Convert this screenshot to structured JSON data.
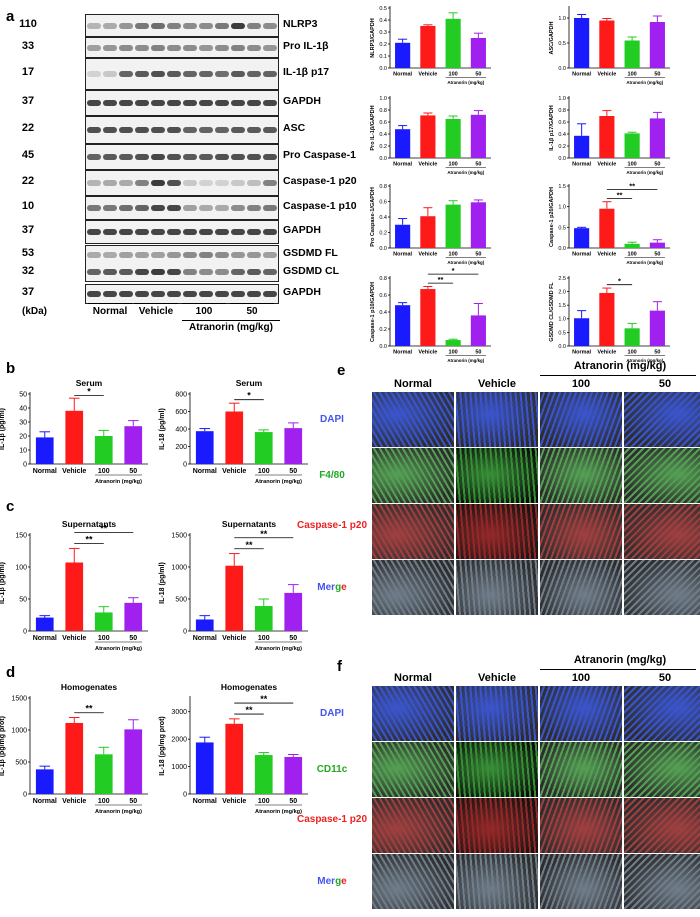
{
  "panels": {
    "a": "a",
    "b": "b",
    "c": "c",
    "d": "d",
    "e": "e",
    "f": "f"
  },
  "blot": {
    "rows": [
      {
        "mw": "110",
        "protein": "NLRP3",
        "dark": [
          0.3,
          0.35,
          0.45,
          0.6,
          0.65,
          0.55,
          0.5,
          0.5,
          0.6,
          0.9,
          0.55,
          0.5
        ]
      },
      {
        "mw": "33",
        "protein": "Pro IL-1β",
        "dark": [
          0.4,
          0.45,
          0.5,
          0.5,
          0.55,
          0.5,
          0.5,
          0.45,
          0.5,
          0.55,
          0.5,
          0.45
        ]
      },
      {
        "mw": "17",
        "protein": "IL-1β p17",
        "dark": [
          0.15,
          0.2,
          0.7,
          0.75,
          0.8,
          0.75,
          0.7,
          0.7,
          0.65,
          0.75,
          0.7,
          0.7
        ]
      },
      {
        "mw": "37",
        "protein": "GAPDH",
        "dark": [
          0.85,
          0.85,
          0.85,
          0.85,
          0.85,
          0.85,
          0.85,
          0.85,
          0.85,
          0.85,
          0.85,
          0.85
        ]
      },
      {
        "mw": "22",
        "protein": "ASC",
        "dark": [
          0.8,
          0.8,
          0.8,
          0.8,
          0.8,
          0.8,
          0.7,
          0.7,
          0.7,
          0.75,
          0.75,
          0.75
        ]
      },
      {
        "mw": "45",
        "protein": "Pro Caspase-1",
        "dark": [
          0.7,
          0.75,
          0.75,
          0.8,
          0.85,
          0.8,
          0.75,
          0.75,
          0.8,
          0.8,
          0.8,
          0.8
        ]
      },
      {
        "mw": "22",
        "protein": "Caspase-1 p20",
        "dark": [
          0.3,
          0.35,
          0.35,
          0.55,
          0.9,
          0.8,
          0.2,
          0.15,
          0.15,
          0.2,
          0.25,
          0.55
        ]
      },
      {
        "mw": "10",
        "protein": "Caspase-1 p10",
        "dark": [
          0.6,
          0.6,
          0.65,
          0.7,
          0.85,
          0.85,
          0.4,
          0.35,
          0.35,
          0.5,
          0.55,
          0.6
        ]
      },
      {
        "mw": "37",
        "protein": "GAPDH",
        "dark": [
          0.85,
          0.85,
          0.85,
          0.85,
          0.85,
          0.85,
          0.85,
          0.85,
          0.85,
          0.85,
          0.85,
          0.85
        ]
      },
      {
        "mw": "53",
        "protein": "GSDMD FL",
        "dark": [
          0.35,
          0.35,
          0.4,
          0.4,
          0.4,
          0.45,
          0.5,
          0.55,
          0.5,
          0.45,
          0.45,
          0.4
        ]
      },
      {
        "mw": "32",
        "protein": "GSDMD CL",
        "dark": [
          0.7,
          0.75,
          0.75,
          0.85,
          0.9,
          0.85,
          0.55,
          0.5,
          0.5,
          0.7,
          0.75,
          0.7
        ]
      },
      {
        "mw": "37",
        "protein": "GAPDH",
        "dark": [
          0.85,
          0.85,
          0.85,
          0.85,
          0.85,
          0.85,
          0.85,
          0.85,
          0.85,
          0.85,
          0.85,
          0.85
        ]
      }
    ],
    "kda": "(kDa)",
    "groups": [
      "Normal",
      "Vehicle",
      "100",
      "50"
    ],
    "treatment": "Atranorin (mg/kg)"
  },
  "colors": {
    "Normal": "#1a1aff",
    "Vehicle": "#ff1a1a",
    "100": "#22cc22",
    "50": "#a020f0"
  },
  "chart_data": [
    {
      "type": "bar",
      "panel": "a",
      "ylabel": "NLRP3/GAPDH",
      "categories": [
        "Normal",
        "Vehicle",
        "100",
        "50"
      ],
      "values": [
        0.21,
        0.35,
        0.41,
        0.25
      ],
      "errors": [
        0.03,
        0.01,
        0.05,
        0.04
      ],
      "ylim": [
        0,
        0.5
      ],
      "ticks": [
        "0.0",
        "0.1",
        "0.2",
        "0.3",
        "0.4",
        "0.5"
      ],
      "xlabel": "Atranorin (mg/kg)",
      "sig": []
    },
    {
      "type": "bar",
      "panel": "a",
      "ylabel": "ASC/GAPDH",
      "categories": [
        "Normal",
        "Vehicle",
        "100",
        "50"
      ],
      "values": [
        1.0,
        0.95,
        0.55,
        0.92
      ],
      "errors": [
        0.07,
        0.04,
        0.07,
        0.12
      ],
      "ylim": [
        0,
        1.2
      ],
      "ticks": [
        "0.0",
        "0.5",
        "1.0"
      ],
      "xlabel": "Atranorin (mg/kg)",
      "sig": []
    },
    {
      "type": "bar",
      "panel": "a",
      "ylabel": "Pro IL-1β/GAPDH",
      "categories": [
        "Normal",
        "Vehicle",
        "100",
        "50"
      ],
      "values": [
        0.48,
        0.71,
        0.65,
        0.72
      ],
      "errors": [
        0.06,
        0.04,
        0.05,
        0.07
      ],
      "ylim": [
        0,
        1.0
      ],
      "ticks": [
        "0.0",
        "0.2",
        "0.4",
        "0.6",
        "0.8",
        "1.0"
      ],
      "xlabel": "Atranorin (mg/kg)",
      "sig": []
    },
    {
      "type": "bar",
      "panel": "a",
      "ylabel": "IL-1β p17/GAPDH",
      "categories": [
        "Normal",
        "Vehicle",
        "100",
        "50"
      ],
      "values": [
        0.37,
        0.7,
        0.41,
        0.66
      ],
      "errors": [
        0.2,
        0.09,
        0.02,
        0.1
      ],
      "ylim": [
        0,
        1.0
      ],
      "ticks": [
        "0.0",
        "0.2",
        "0.4",
        "0.6",
        "0.8",
        "1.0"
      ],
      "xlabel": "Atranorin (mg/kg)",
      "sig": []
    },
    {
      "type": "bar",
      "panel": "a",
      "ylabel": "Pro Caspase-1/GAPDH",
      "categories": [
        "Normal",
        "Vehicle",
        "100",
        "50"
      ],
      "values": [
        0.3,
        0.41,
        0.56,
        0.59
      ],
      "errors": [
        0.08,
        0.11,
        0.05,
        0.03
      ],
      "ylim": [
        0,
        0.8
      ],
      "ticks": [
        "0.0",
        "0.2",
        "0.4",
        "0.6",
        "0.8"
      ],
      "xlabel": "Atranorin (mg/kg)",
      "sig": []
    },
    {
      "type": "bar",
      "panel": "a",
      "ylabel": "Caspase-1 p20/GAPDH",
      "categories": [
        "Normal",
        "Vehicle",
        "100",
        "50"
      ],
      "values": [
        0.48,
        0.95,
        0.1,
        0.13
      ],
      "errors": [
        0.02,
        0.17,
        0.04,
        0.07
      ],
      "ylim": [
        0,
        1.5
      ],
      "ticks": [
        "0.0",
        "0.5",
        "1.0",
        "1.5"
      ],
      "xlabel": "Atranorin (mg/kg)",
      "sig": [
        {
          "from": 1,
          "to": 2,
          "label": "**",
          "level": 0
        },
        {
          "from": 1,
          "to": 3,
          "label": "**",
          "level": 1
        }
      ]
    },
    {
      "type": "bar",
      "panel": "a",
      "ylabel": "Caspase-1 p10/GAPDH",
      "categories": [
        "Normal",
        "Vehicle",
        "100",
        "50"
      ],
      "values": [
        0.48,
        0.67,
        0.07,
        0.36
      ],
      "errors": [
        0.03,
        0.03,
        0.01,
        0.14
      ],
      "ylim": [
        0,
        0.8
      ],
      "ticks": [
        "0.0",
        "0.2",
        "0.4",
        "0.6",
        "0.8"
      ],
      "xlabel": "Atranorin (mg/kg)",
      "sig": [
        {
          "from": 1,
          "to": 2,
          "label": "**",
          "level": 0
        },
        {
          "from": 1,
          "to": 3,
          "label": "*",
          "level": 1
        }
      ]
    },
    {
      "type": "bar",
      "panel": "a",
      "ylabel": "GSDMD CL/GSDMD FL",
      "categories": [
        "Normal",
        "Vehicle",
        "100",
        "50"
      ],
      "values": [
        1.02,
        1.95,
        0.65,
        1.3
      ],
      "errors": [
        0.28,
        0.18,
        0.18,
        0.33
      ],
      "ylim": [
        0,
        2.5
      ],
      "ticks": [
        "0.0",
        "0.5",
        "1.0",
        "1.5",
        "2.0",
        "2.5"
      ],
      "xlabel": "Atranorin (mg/kg)",
      "sig": [
        {
          "from": 1,
          "to": 2,
          "label": "*",
          "level": 0
        }
      ]
    },
    {
      "type": "bar",
      "panel": "b",
      "title": "Serum",
      "ylabel": "IL-1β (pg/ml)",
      "categories": [
        "Normal",
        "Vehicle",
        "100",
        "50"
      ],
      "values": [
        19,
        38,
        20,
        27
      ],
      "errors": [
        4,
        9,
        4,
        4
      ],
      "ylim": [
        0,
        50
      ],
      "ticks": [
        "0",
        "10",
        "20",
        "30",
        "40",
        "50"
      ],
      "xlabel": "Atranorin (mg/kg)",
      "sig": [
        {
          "from": 1,
          "to": 2,
          "label": "*",
          "level": 0
        }
      ]
    },
    {
      "type": "bar",
      "panel": "b",
      "title": "Serum",
      "ylabel": "IL-18 (pg/ml)",
      "categories": [
        "Normal",
        "Vehicle",
        "100",
        "50"
      ],
      "values": [
        375,
        600,
        365,
        410
      ],
      "errors": [
        30,
        95,
        25,
        60
      ],
      "ylim": [
        0,
        800
      ],
      "ticks": [
        "0",
        "200",
        "400",
        "600",
        "800"
      ],
      "xlabel": "Atranorin (mg/kg)",
      "sig": [
        {
          "from": 1,
          "to": 2,
          "label": "*",
          "level": 0
        }
      ]
    },
    {
      "type": "bar",
      "panel": "c",
      "title": "Supernatants",
      "ylabel": "IL-1β (pg/ml)",
      "categories": [
        "Normal",
        "Vehicle",
        "100",
        "50"
      ],
      "values": [
        21,
        107,
        29,
        44
      ],
      "errors": [
        3,
        22,
        9,
        8
      ],
      "ylim": [
        0,
        150
      ],
      "ticks": [
        "0",
        "50",
        "100",
        "150"
      ],
      "xlabel": "Atranorin (mg/kg)",
      "sig": [
        {
          "from": 1,
          "to": 2,
          "label": "**",
          "level": 0
        },
        {
          "from": 1,
          "to": 3,
          "label": "**",
          "level": 1
        }
      ]
    },
    {
      "type": "bar",
      "panel": "c",
      "title": "Supernatants",
      "ylabel": "IL-18 (pg/ml)",
      "categories": [
        "Normal",
        "Vehicle",
        "100",
        "50"
      ],
      "values": [
        180,
        1020,
        390,
        595
      ],
      "errors": [
        60,
        190,
        110,
        130
      ],
      "ylim": [
        0,
        1500
      ],
      "ticks": [
        "0",
        "500",
        "1000",
        "1500"
      ],
      "xlabel": "Atranorin (mg/kg)",
      "sig": [
        {
          "from": 1,
          "to": 2,
          "label": "**",
          "level": 0
        },
        {
          "from": 1,
          "to": 3,
          "label": "**",
          "level": 1
        }
      ]
    },
    {
      "type": "bar",
      "panel": "d",
      "title": "Homogenates",
      "ylabel": "IL-1β (pg/mg prot)",
      "categories": [
        "Normal",
        "Vehicle",
        "100",
        "50"
      ],
      "values": [
        385,
        1110,
        620,
        1010
      ],
      "errors": [
        50,
        85,
        110,
        150
      ],
      "ylim": [
        0,
        1500
      ],
      "ticks": [
        "0",
        "500",
        "1000",
        "1500"
      ],
      "xlabel": "Atranorin (mg/kg)",
      "sig": [
        {
          "from": 1,
          "to": 2,
          "label": "**",
          "level": 0
        }
      ]
    },
    {
      "type": "bar",
      "panel": "d",
      "title": "Homogenates",
      "ylabel": "IL-18 (pg/mg prot)",
      "categories": [
        "Normal",
        "Vehicle",
        "100",
        "50"
      ],
      "values": [
        1880,
        2560,
        1420,
        1350
      ],
      "errors": [
        190,
        180,
        90,
        90
      ],
      "ylim": [
        0,
        3500
      ],
      "ticks": [
        "0",
        "1000",
        "2000",
        "3000"
      ],
      "xlabel": "Atranorin (mg/kg)",
      "sig": [
        {
          "from": 1,
          "to": 2,
          "label": "**",
          "level": 0
        },
        {
          "from": 1,
          "to": 3,
          "label": "**",
          "level": 1
        }
      ]
    }
  ],
  "micro_e": {
    "treatment": "Atranorin (mg/kg)",
    "columns": [
      "Normal",
      "Vehicle",
      "100",
      "50"
    ],
    "rows": [
      {
        "label": "DAPI",
        "color": "#4455ee",
        "stain": "#1030c0"
      },
      {
        "label": "F4/80",
        "color": "#22aa22",
        "stain": "#2f8a2f"
      },
      {
        "label": "Caspase-1 p20",
        "color": "#ee2222",
        "stain": "#8a1616"
      },
      {
        "label": "Merge",
        "stain": "#506070"
      }
    ]
  },
  "micro_f": {
    "treatment": "Atranorin (mg/kg)",
    "columns": [
      "Normal",
      "Vehicle",
      "100",
      "50"
    ],
    "rows": [
      {
        "label": "DAPI",
        "color": "#4455ee",
        "stain": "#1030c0"
      },
      {
        "label": "CD11c",
        "color": "#22aa22",
        "stain": "#2f8a2f"
      },
      {
        "label": "Caspase-1 p20",
        "color": "#ee2222",
        "stain": "#8a1616"
      },
      {
        "label": "Merge",
        "stain": "#506070"
      }
    ]
  },
  "merge_parts": [
    {
      "t": "Mer",
      "c": "#4455ee"
    },
    {
      "t": "g",
      "c": "#22aa22"
    },
    {
      "t": "e",
      "c": "#ee2222"
    }
  ]
}
